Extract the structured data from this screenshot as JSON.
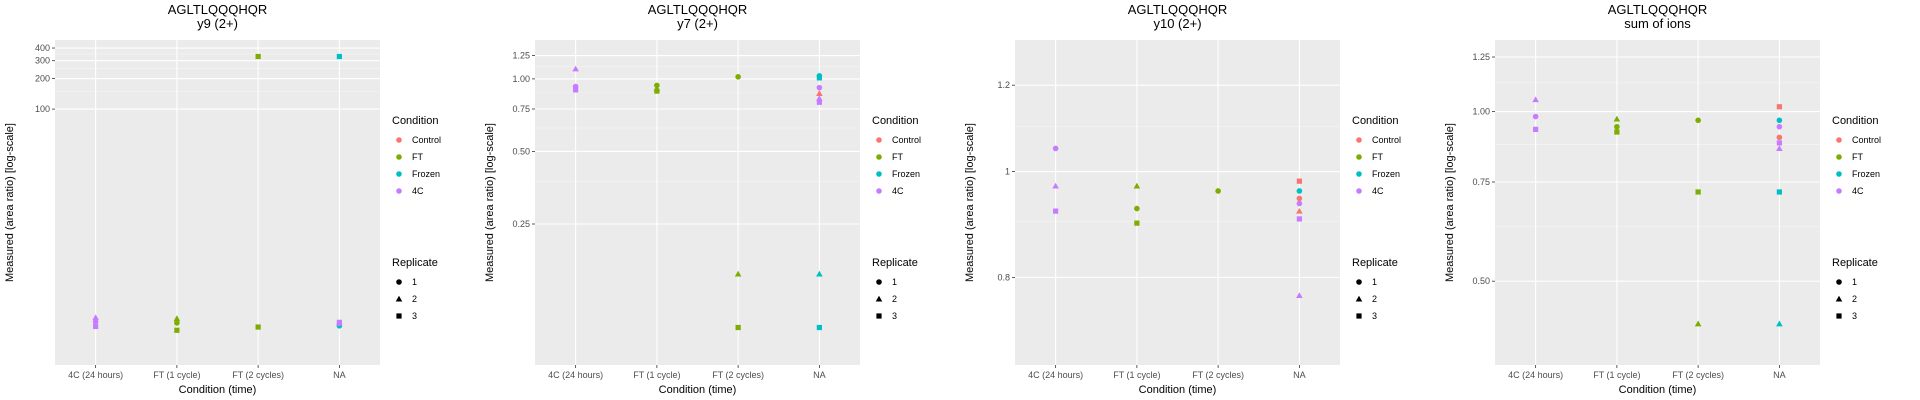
{
  "chart_data": [
    {
      "type": "scatter",
      "title": "AGLTLQQQHQR",
      "subtitle": "y9 (2+)",
      "xlabel": "Condition (time)",
      "ylabel": "Measured (area ratio) [log-scale]",
      "yscale": "log",
      "ylim": [
        0.3,
        480
      ],
      "yticks": [
        100,
        200,
        300,
        400
      ],
      "grid": true,
      "categories": [
        "4C (24 hours)",
        "FT (1 cycle)",
        "FT (2 cycles)",
        "NA"
      ],
      "points": [
        {
          "x": "4C (24 hours)",
          "y": 0.8,
          "condition": "4C",
          "replicate": "1"
        },
        {
          "x": "4C (24 hours)",
          "y": 0.88,
          "condition": "4C",
          "replicate": "2"
        },
        {
          "x": "4C (24 hours)",
          "y": 0.72,
          "condition": "4C",
          "replicate": "3"
        },
        {
          "x": "FT (1 cycle)",
          "y": 0.78,
          "condition": "FT",
          "replicate": "1"
        },
        {
          "x": "FT (1 cycle)",
          "y": 0.86,
          "condition": "FT",
          "replicate": "2"
        },
        {
          "x": "FT (1 cycle)",
          "y": 0.66,
          "condition": "FT",
          "replicate": "3"
        },
        {
          "x": "FT (2 cycles)",
          "y": 330,
          "condition": "FT",
          "replicate": "3"
        },
        {
          "x": "FT (2 cycles)",
          "y": 0.71,
          "condition": "FT",
          "replicate": "3"
        },
        {
          "x": "NA",
          "y": 330,
          "condition": "Frozen",
          "replicate": "3"
        },
        {
          "x": "NA",
          "y": 0.73,
          "condition": "Frozen",
          "replicate": "1"
        },
        {
          "x": "NA",
          "y": 0.77,
          "condition": "4C",
          "replicate": "1"
        },
        {
          "x": "NA",
          "y": 0.79,
          "condition": "4C",
          "replicate": "3"
        }
      ]
    },
    {
      "type": "scatter",
      "title": "AGLTLQQQHQR",
      "subtitle": "y7 (2+)",
      "xlabel": "Condition (time)",
      "ylabel": "Measured (area ratio) [log-scale]",
      "yscale": "log",
      "ylim": [
        0.065,
        1.45
      ],
      "yticks": [
        0.25,
        0.5,
        0.75,
        1.0,
        1.25
      ],
      "ytick_labels": [
        "0.25",
        "0.50",
        "0.75",
        "1.00",
        "1.25"
      ],
      "grid": true,
      "categories": [
        "4C (24 hours)",
        "FT (1 cycle)",
        "FT (2 cycles)",
        "NA"
      ],
      "points": [
        {
          "x": "4C (24 hours)",
          "y": 1.1,
          "condition": "4C",
          "replicate": "2"
        },
        {
          "x": "4C (24 hours)",
          "y": 0.93,
          "condition": "4C",
          "replicate": "1"
        },
        {
          "x": "4C (24 hours)",
          "y": 0.9,
          "condition": "4C",
          "replicate": "3"
        },
        {
          "x": "FT (1 cycle)",
          "y": 0.94,
          "condition": "FT",
          "replicate": "1"
        },
        {
          "x": "FT (1 cycle)",
          "y": 0.91,
          "condition": "FT",
          "replicate": "2"
        },
        {
          "x": "FT (1 cycle)",
          "y": 0.89,
          "condition": "FT",
          "replicate": "3"
        },
        {
          "x": "FT (2 cycles)",
          "y": 1.02,
          "condition": "FT",
          "replicate": "1"
        },
        {
          "x": "FT (2 cycles)",
          "y": 0.155,
          "condition": "FT",
          "replicate": "2"
        },
        {
          "x": "FT (2 cycles)",
          "y": 0.093,
          "condition": "FT",
          "replicate": "3"
        },
        {
          "x": "NA",
          "y": 1.03,
          "condition": "Frozen",
          "replicate": "1"
        },
        {
          "x": "NA",
          "y": 1.01,
          "condition": "Frozen",
          "replicate": "3"
        },
        {
          "x": "NA",
          "y": 0.92,
          "condition": "4C",
          "replicate": "1"
        },
        {
          "x": "NA",
          "y": 0.87,
          "condition": "Control",
          "replicate": "2"
        },
        {
          "x": "NA",
          "y": 0.83,
          "condition": "4C",
          "replicate": "2"
        },
        {
          "x": "NA",
          "y": 0.8,
          "condition": "4C",
          "replicate": "3"
        },
        {
          "x": "NA",
          "y": 0.155,
          "condition": "Frozen",
          "replicate": "2"
        },
        {
          "x": "NA",
          "y": 0.093,
          "condition": "Frozen",
          "replicate": "3"
        }
      ]
    },
    {
      "type": "scatter",
      "title": "AGLTLQQQHQR",
      "subtitle": "y10 (2+)",
      "xlabel": "Condition (time)",
      "ylabel": "Measured (area ratio) [log-scale]",
      "yscale": "log",
      "ylim": [
        0.665,
        1.32
      ],
      "yticks": [
        0.8,
        1.0,
        1.2
      ],
      "grid": true,
      "categories": [
        "4C (24 hours)",
        "FT (1 cycle)",
        "FT (2 cycles)",
        "NA"
      ],
      "points": [
        {
          "x": "4C (24 hours)",
          "y": 1.05,
          "condition": "4C",
          "replicate": "1"
        },
        {
          "x": "4C (24 hours)",
          "y": 0.97,
          "condition": "4C",
          "replicate": "2"
        },
        {
          "x": "4C (24 hours)",
          "y": 0.92,
          "condition": "4C",
          "replicate": "3"
        },
        {
          "x": "FT (1 cycle)",
          "y": 0.97,
          "condition": "FT",
          "replicate": "2"
        },
        {
          "x": "FT (1 cycle)",
          "y": 0.925,
          "condition": "FT",
          "replicate": "1"
        },
        {
          "x": "FT (1 cycle)",
          "y": 0.897,
          "condition": "FT",
          "replicate": "3"
        },
        {
          "x": "FT (2 cycles)",
          "y": 0.96,
          "condition": "FT",
          "replicate": "1"
        },
        {
          "x": "NA",
          "y": 0.98,
          "condition": "Control",
          "replicate": "3"
        },
        {
          "x": "NA",
          "y": 0.96,
          "condition": "Frozen",
          "replicate": "1"
        },
        {
          "x": "NA",
          "y": 0.945,
          "condition": "Control",
          "replicate": "1"
        },
        {
          "x": "NA",
          "y": 0.935,
          "condition": "4C",
          "replicate": "1"
        },
        {
          "x": "NA",
          "y": 0.92,
          "condition": "Control",
          "replicate": "2"
        },
        {
          "x": "NA",
          "y": 0.905,
          "condition": "4C",
          "replicate": "3"
        },
        {
          "x": "NA",
          "y": 0.77,
          "condition": "4C",
          "replicate": "2"
        }
      ]
    },
    {
      "type": "scatter",
      "title": "AGLTLQQQHQR",
      "subtitle": "sum of ions",
      "xlabel": "Condition (time)",
      "ylabel": "Measured (area ratio) [log-scale]",
      "yscale": "log",
      "ylim": [
        0.355,
        1.34
      ],
      "yticks": [
        0.5,
        0.75,
        1.0,
        1.25
      ],
      "ytick_labels": [
        "0.50",
        "0.75",
        "1.00",
        "1.25"
      ],
      "grid": true,
      "categories": [
        "4C (24 hours)",
        "FT (1 cycle)",
        "FT (2 cycles)",
        "NA"
      ],
      "points": [
        {
          "x": "4C (24 hours)",
          "y": 1.05,
          "condition": "4C",
          "replicate": "2"
        },
        {
          "x": "4C (24 hours)",
          "y": 0.98,
          "condition": "4C",
          "replicate": "1"
        },
        {
          "x": "4C (24 hours)",
          "y": 0.93,
          "condition": "4C",
          "replicate": "3"
        },
        {
          "x": "FT (1 cycle)",
          "y": 0.97,
          "condition": "FT",
          "replicate": "2"
        },
        {
          "x": "FT (1 cycle)",
          "y": 0.94,
          "condition": "FT",
          "replicate": "1"
        },
        {
          "x": "FT (1 cycle)",
          "y": 0.92,
          "condition": "FT",
          "replicate": "3"
        },
        {
          "x": "FT (2 cycles)",
          "y": 0.965,
          "condition": "FT",
          "replicate": "1"
        },
        {
          "x": "FT (2 cycles)",
          "y": 0.72,
          "condition": "FT",
          "replicate": "3"
        },
        {
          "x": "FT (2 cycles)",
          "y": 0.42,
          "condition": "FT",
          "replicate": "2"
        },
        {
          "x": "NA",
          "y": 1.02,
          "condition": "Control",
          "replicate": "3"
        },
        {
          "x": "NA",
          "y": 0.965,
          "condition": "Frozen",
          "replicate": "1"
        },
        {
          "x": "NA",
          "y": 0.94,
          "condition": "4C",
          "replicate": "1"
        },
        {
          "x": "NA",
          "y": 0.9,
          "condition": "Control",
          "replicate": "1"
        },
        {
          "x": "NA",
          "y": 0.88,
          "condition": "4C",
          "replicate": "3"
        },
        {
          "x": "NA",
          "y": 0.86,
          "condition": "4C",
          "replicate": "2"
        },
        {
          "x": "NA",
          "y": 0.72,
          "condition": "Frozen",
          "replicate": "3"
        },
        {
          "x": "NA",
          "y": 0.42,
          "condition": "Frozen",
          "replicate": "2"
        }
      ]
    }
  ],
  "legend": {
    "color_title": "Condition",
    "color_items": [
      {
        "label": "Control",
        "color": "#F8766D"
      },
      {
        "label": "FT",
        "color": "#7CAE00"
      },
      {
        "label": "Frozen",
        "color": "#00BFC4"
      },
      {
        "label": "4C",
        "color": "#C77CFF"
      }
    ],
    "shape_title": "Replicate",
    "shape_items": [
      {
        "label": "1",
        "shape": "circle"
      },
      {
        "label": "2",
        "shape": "triangle"
      },
      {
        "label": "3",
        "shape": "square"
      }
    ],
    "placement": "right"
  },
  "colors": {
    "panel_bg": "#EBEBEB",
    "grid_major": "#FFFFFF",
    "Control": "#F8766D",
    "FT": "#7CAE00",
    "Frozen": "#00BFC4",
    "4C": "#C77CFF"
  }
}
